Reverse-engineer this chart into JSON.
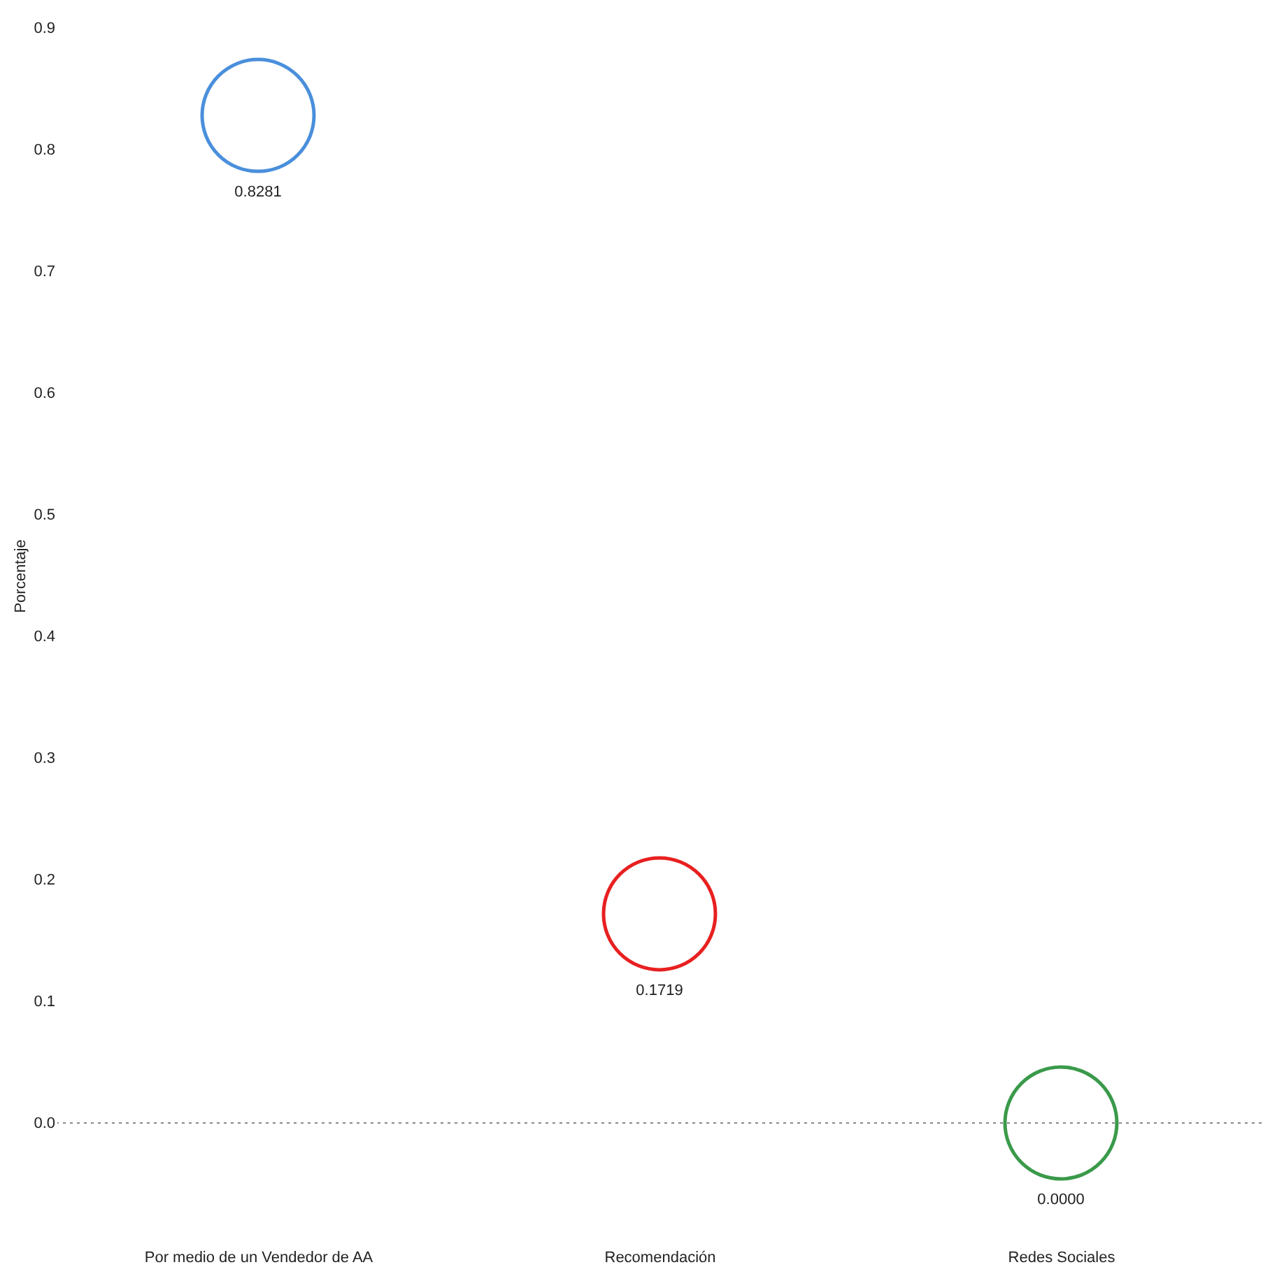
{
  "chart_data": {
    "type": "scatter",
    "ylabel": "Porcentaje",
    "categories": [
      "Por medio de un Vendedor de AA",
      "Recomendación",
      "Redes Sociales"
    ],
    "values": [
      0.8281,
      0.1719,
      0.0
    ],
    "colors": [
      "#4a8fdc",
      "#e82020",
      "#3a9a4a"
    ],
    "value_labels": [
      "0.8281",
      "0.1719",
      "0.0000"
    ],
    "ylim": [
      0,
      0.9
    ],
    "yticks": [
      {
        "value": 0,
        "label": "0.0"
      },
      0.1,
      0.2,
      0.3,
      0.4,
      0.5,
      0.6,
      0.7,
      0.8,
      0.9
    ],
    "ref_lines": [
      {
        "axis": "y",
        "value": 0,
        "color": "#888888",
        "line_style": "dotted"
      }
    ],
    "marker": "circle",
    "grid": false,
    "legend": false
  }
}
